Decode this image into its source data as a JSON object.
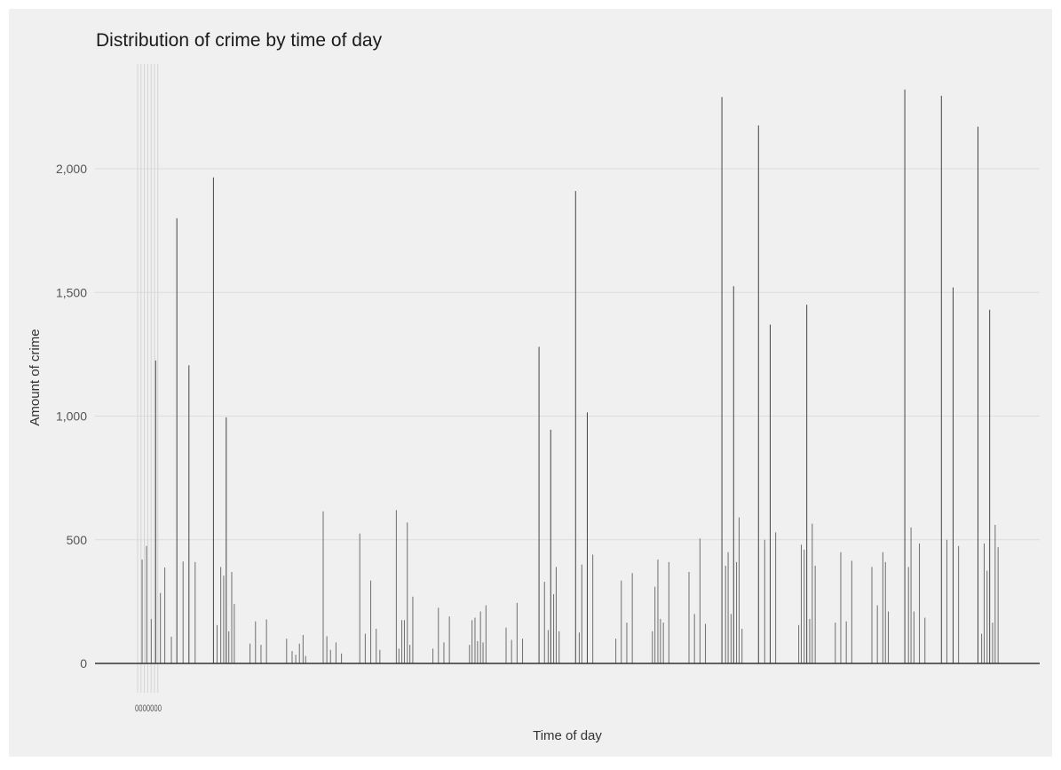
{
  "chart_data": {
    "type": "bar",
    "title": "Distribution of crime by time of day",
    "xlabel": "Time of day",
    "ylabel": "Amount of crime",
    "y_ticks": [
      0,
      500,
      1000,
      1500,
      2000
    ],
    "y_tick_labels": [
      "0",
      "500",
      "1,000",
      "1,500",
      "2,000"
    ],
    "ylim": [
      0,
      2300
    ],
    "grid": "horizontal",
    "legend": "none",
    "x_tick_label_overlap": "0000000",
    "bars": [
      {
        "x": 0.05,
        "y": 420
      },
      {
        "x": 0.17,
        "y": 475
      },
      {
        "x": 0.3,
        "y": 180
      },
      {
        "x": 0.42,
        "y": 1225
      },
      {
        "x": 0.55,
        "y": 285
      },
      {
        "x": 0.67,
        "y": 388
      },
      {
        "x": 0.85,
        "y": 108
      },
      {
        "x": 1.0,
        "y": 1800
      },
      {
        "x": 1.17,
        "y": 412
      },
      {
        "x": 1.33,
        "y": 1205
      },
      {
        "x": 1.5,
        "y": 410
      },
      {
        "x": 2.0,
        "y": 1965
      },
      {
        "x": 2.1,
        "y": 155
      },
      {
        "x": 2.2,
        "y": 390
      },
      {
        "x": 2.28,
        "y": 355
      },
      {
        "x": 2.35,
        "y": 995
      },
      {
        "x": 2.42,
        "y": 130
      },
      {
        "x": 2.5,
        "y": 370
      },
      {
        "x": 2.57,
        "y": 240
      },
      {
        "x": 3.0,
        "y": 80
      },
      {
        "x": 3.15,
        "y": 170
      },
      {
        "x": 3.3,
        "y": 75
      },
      {
        "x": 3.45,
        "y": 178
      },
      {
        "x": 4.0,
        "y": 100
      },
      {
        "x": 4.15,
        "y": 50
      },
      {
        "x": 4.25,
        "y": 35
      },
      {
        "x": 4.35,
        "y": 80
      },
      {
        "x": 4.45,
        "y": 115
      },
      {
        "x": 4.52,
        "y": 30
      },
      {
        "x": 5.0,
        "y": 615
      },
      {
        "x": 5.1,
        "y": 110
      },
      {
        "x": 5.2,
        "y": 55
      },
      {
        "x": 5.35,
        "y": 85
      },
      {
        "x": 5.5,
        "y": 40
      },
      {
        "x": 6.0,
        "y": 525
      },
      {
        "x": 6.15,
        "y": 120
      },
      {
        "x": 6.3,
        "y": 335
      },
      {
        "x": 6.45,
        "y": 140
      },
      {
        "x": 6.55,
        "y": 55
      },
      {
        "x": 7.0,
        "y": 620
      },
      {
        "x": 7.07,
        "y": 60
      },
      {
        "x": 7.15,
        "y": 175
      },
      {
        "x": 7.22,
        "y": 175
      },
      {
        "x": 7.3,
        "y": 570
      },
      {
        "x": 7.37,
        "y": 75
      },
      {
        "x": 7.45,
        "y": 270
      },
      {
        "x": 8.0,
        "y": 60
      },
      {
        "x": 8.15,
        "y": 225
      },
      {
        "x": 8.3,
        "y": 85
      },
      {
        "x": 8.45,
        "y": 190
      },
      {
        "x": 9.0,
        "y": 75
      },
      {
        "x": 9.07,
        "y": 175
      },
      {
        "x": 9.15,
        "y": 185
      },
      {
        "x": 9.22,
        "y": 90
      },
      {
        "x": 9.3,
        "y": 210
      },
      {
        "x": 9.37,
        "y": 85
      },
      {
        "x": 9.45,
        "y": 235
      },
      {
        "x": 10.0,
        "y": 145
      },
      {
        "x": 10.15,
        "y": 95
      },
      {
        "x": 10.3,
        "y": 245
      },
      {
        "x": 10.45,
        "y": 100
      },
      {
        "x": 10.9,
        "y": 1280
      },
      {
        "x": 11.05,
        "y": 330
      },
      {
        "x": 11.15,
        "y": 135
      },
      {
        "x": 11.22,
        "y": 945
      },
      {
        "x": 11.3,
        "y": 280
      },
      {
        "x": 11.37,
        "y": 390
      },
      {
        "x": 11.45,
        "y": 130
      },
      {
        "x": 11.9,
        "y": 1910
      },
      {
        "x": 12.0,
        "y": 125
      },
      {
        "x": 12.07,
        "y": 400
      },
      {
        "x": 12.22,
        "y": 1015
      },
      {
        "x": 12.37,
        "y": 440
      },
      {
        "x": 13.0,
        "y": 100
      },
      {
        "x": 13.15,
        "y": 335
      },
      {
        "x": 13.3,
        "y": 165
      },
      {
        "x": 13.45,
        "y": 365
      },
      {
        "x": 14.0,
        "y": 130
      },
      {
        "x": 14.07,
        "y": 310
      },
      {
        "x": 14.15,
        "y": 420
      },
      {
        "x": 14.22,
        "y": 180
      },
      {
        "x": 14.3,
        "y": 165
      },
      {
        "x": 14.45,
        "y": 410
      },
      {
        "x": 15.0,
        "y": 370
      },
      {
        "x": 15.15,
        "y": 200
      },
      {
        "x": 15.3,
        "y": 505
      },
      {
        "x": 15.45,
        "y": 160
      },
      {
        "x": 15.9,
        "y": 2290
      },
      {
        "x": 16.0,
        "y": 395
      },
      {
        "x": 16.07,
        "y": 450
      },
      {
        "x": 16.15,
        "y": 200
      },
      {
        "x": 16.22,
        "y": 1525
      },
      {
        "x": 16.3,
        "y": 410
      },
      {
        "x": 16.37,
        "y": 590
      },
      {
        "x": 16.45,
        "y": 140
      },
      {
        "x": 16.9,
        "y": 2175
      },
      {
        "x": 17.07,
        "y": 500
      },
      {
        "x": 17.22,
        "y": 1370
      },
      {
        "x": 17.37,
        "y": 530
      },
      {
        "x": 18.0,
        "y": 155
      },
      {
        "x": 18.07,
        "y": 480
      },
      {
        "x": 18.15,
        "y": 460
      },
      {
        "x": 18.22,
        "y": 1450
      },
      {
        "x": 18.3,
        "y": 180
      },
      {
        "x": 18.37,
        "y": 565
      },
      {
        "x": 18.45,
        "y": 395
      },
      {
        "x": 19.0,
        "y": 165
      },
      {
        "x": 19.15,
        "y": 450
      },
      {
        "x": 19.3,
        "y": 170
      },
      {
        "x": 19.45,
        "y": 415
      },
      {
        "x": 20.0,
        "y": 390
      },
      {
        "x": 20.15,
        "y": 235
      },
      {
        "x": 20.3,
        "y": 450
      },
      {
        "x": 20.37,
        "y": 410
      },
      {
        "x": 20.45,
        "y": 210
      },
      {
        "x": 20.9,
        "y": 2320
      },
      {
        "x": 21.0,
        "y": 390
      },
      {
        "x": 21.07,
        "y": 550
      },
      {
        "x": 21.15,
        "y": 210
      },
      {
        "x": 21.3,
        "y": 485
      },
      {
        "x": 21.45,
        "y": 185
      },
      {
        "x": 21.9,
        "y": 2295
      },
      {
        "x": 22.05,
        "y": 500
      },
      {
        "x": 22.22,
        "y": 1520
      },
      {
        "x": 22.37,
        "y": 475
      },
      {
        "x": 22.9,
        "y": 2170
      },
      {
        "x": 23.0,
        "y": 120
      },
      {
        "x": 23.07,
        "y": 485
      },
      {
        "x": 23.15,
        "y": 375
      },
      {
        "x": 23.22,
        "y": 1430
      },
      {
        "x": 23.3,
        "y": 165
      },
      {
        "x": 23.37,
        "y": 560
      },
      {
        "x": 23.45,
        "y": 470
      }
    ]
  }
}
